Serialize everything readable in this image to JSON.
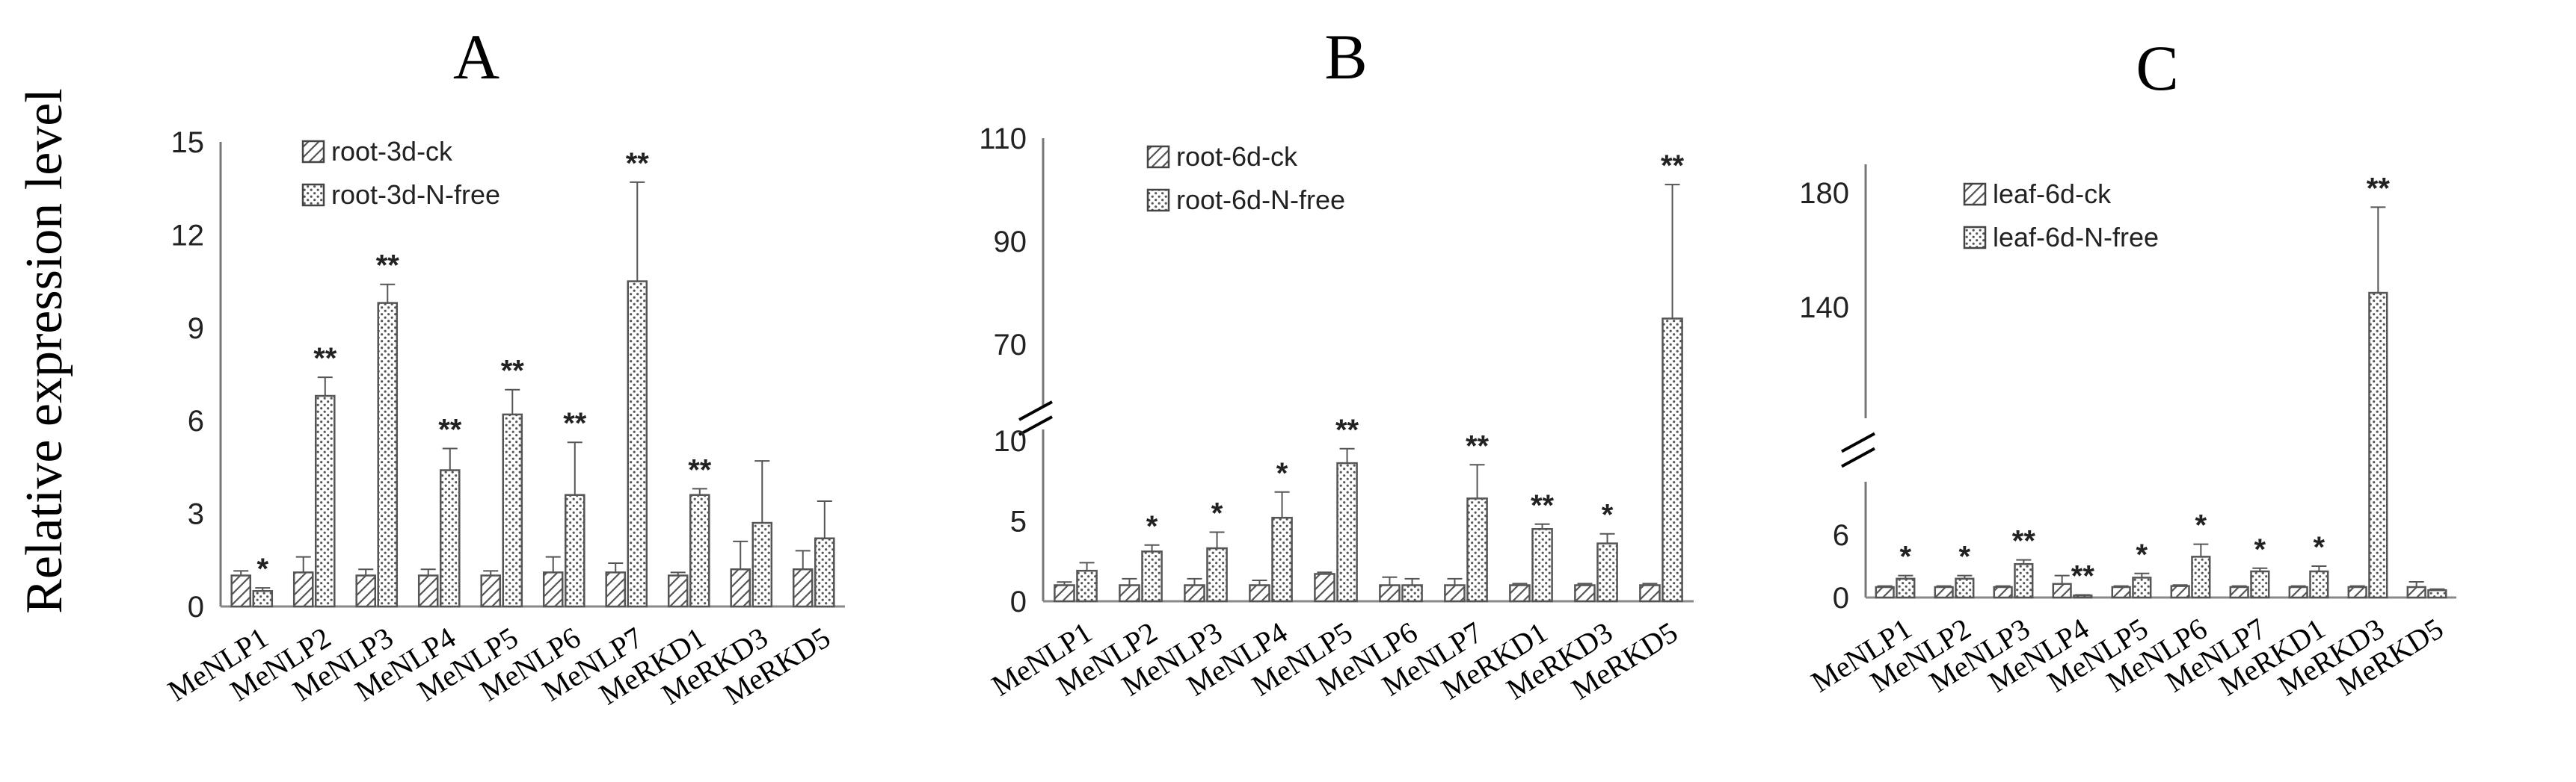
{
  "figure": {
    "ylabel": "Relative expression level"
  },
  "chart_data": [
    {
      "type": "bar",
      "panel": "A",
      "categories": [
        "MeNLP1",
        "MeNLP2",
        "MeNLP3",
        "MeNLP4",
        "MeNLP5",
        "MeNLP6",
        "MeNLP7",
        "MeRKD1",
        "MeRKD3",
        "MeRKD5"
      ],
      "yticks": [
        0,
        3,
        6,
        9,
        12,
        15
      ],
      "ylim": [
        0,
        15
      ],
      "series": [
        {
          "name": "root-3d-ck",
          "pattern": "diagonal",
          "values": [
            1,
            1.1,
            1,
            1,
            1,
            1.1,
            1.1,
            1,
            1.2,
            1.2
          ],
          "errors": [
            0.15,
            0.5,
            0.2,
            0.2,
            0.15,
            0.5,
            0.3,
            0.1,
            0.9,
            0.6
          ]
        },
        {
          "name": "root-3d-N-free",
          "pattern": "dots",
          "values": [
            0.5,
            6.8,
            9.8,
            4.4,
            6.2,
            3.6,
            10.5,
            3.6,
            2.7,
            2.2
          ],
          "errors": [
            0.1,
            0.6,
            0.6,
            0.7,
            0.8,
            1.7,
            3.2,
            0.2,
            2.0,
            1.2
          ]
        }
      ],
      "significance": [
        "*",
        "**",
        "**",
        "**",
        "**",
        "**",
        "**",
        "**",
        "",
        ""
      ],
      "legend": "top-left"
    },
    {
      "type": "bar",
      "panel": "B",
      "categories": [
        "MeNLP1",
        "MeNLP2",
        "MeNLP3",
        "MeNLP4",
        "MeNLP5",
        "MeNLP6",
        "MeNLP7",
        "MeRKD1",
        "MeRKD3",
        "MeRKD5"
      ],
      "yticks": [
        0,
        5,
        10,
        70,
        90,
        110
      ],
      "broken_axis": {
        "lower": [
          0,
          10
        ],
        "upper": [
          60,
          110
        ]
      },
      "series": [
        {
          "name": "root-6d-ck",
          "pattern": "diagonal",
          "values": [
            1,
            1,
            1,
            1,
            1.7,
            1,
            1,
            1,
            1,
            1
          ],
          "errors": [
            0.2,
            0.4,
            0.4,
            0.3,
            0.1,
            0.5,
            0.4,
            0.1,
            0.1,
            0.1
          ]
        },
        {
          "name": "root-6d-N-free",
          "pattern": "dots",
          "values": [
            1.9,
            3.1,
            3.3,
            5.2,
            8.6,
            1,
            6.4,
            4.5,
            3.6,
            75
          ],
          "errors": [
            0.5,
            0.4,
            1.0,
            1.6,
            0.9,
            0.4,
            2.1,
            0.3,
            0.6,
            26
          ]
        }
      ],
      "significance": [
        "",
        "*",
        "*",
        "*",
        "**",
        "",
        "**",
        "**",
        "*",
        "**"
      ],
      "legend": "top-left"
    },
    {
      "type": "bar",
      "panel": "C",
      "categories": [
        "MeNLP1",
        "MeNLP2",
        "MeNLP3",
        "MeNLP4",
        "MeNLP5",
        "MeNLP6",
        "MeNLP7",
        "MeRKD1",
        "MeRKD3",
        "MeRKD5"
      ],
      "yticks": [
        0,
        6,
        140,
        180
      ],
      "broken_axis": {
        "lower": [
          0,
          10
        ],
        "upper": [
          105,
          190
        ]
      },
      "series": [
        {
          "name": "leaf-6d-ck",
          "pattern": "diagonal",
          "values": [
            1,
            1,
            1,
            1.3,
            1,
            1.1,
            1,
            1,
            1,
            1
          ],
          "errors": [
            0.1,
            0.1,
            0.1,
            0.8,
            0.1,
            0.1,
            0.1,
            0.1,
            0.1,
            0.5
          ]
        },
        {
          "name": "leaf-6d-N-free",
          "pattern": "dots",
          "values": [
            1.8,
            1.8,
            3.2,
            0.2,
            1.9,
            3.9,
            2.5,
            2.5,
            145,
            0.7
          ],
          "errors": [
            0.3,
            0.3,
            0.4,
            0.05,
            0.4,
            1.2,
            0.3,
            0.5,
            30,
            0.1
          ]
        }
      ],
      "significance": [
        "*",
        "*",
        "**",
        "**",
        "*",
        "*",
        "*",
        "*",
        "**",
        ""
      ],
      "legend": "top-left"
    }
  ]
}
